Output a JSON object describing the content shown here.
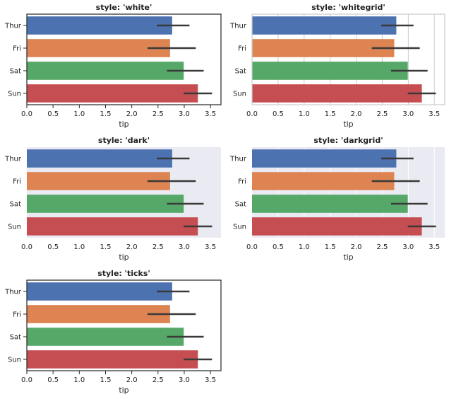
{
  "colors": {
    "bars": [
      "#4c72b0",
      "#dd8452",
      "#55a868",
      "#c44e52"
    ],
    "errorbar": "#3a3a3a",
    "dark_bg": "#eaeaf2",
    "grid_light": "#cccccc",
    "grid_dark": "#ffffff",
    "spine": "#262626"
  },
  "chart_data": [
    {
      "type": "bar",
      "orientation": "horizontal",
      "style": "white",
      "title": "style: 'white'",
      "categories": [
        "Thur",
        "Fri",
        "Sat",
        "Sun"
      ],
      "values": [
        2.77,
        2.73,
        2.99,
        3.26
      ],
      "ci_low": [
        2.48,
        2.3,
        2.67,
        2.99
      ],
      "ci_high": [
        3.1,
        3.22,
        3.37,
        3.53
      ],
      "xlabel": "tip",
      "ylabel": "",
      "xlim": [
        0,
        3.7
      ],
      "xticks": [
        "0.0",
        "0.5",
        "1.0",
        "1.5",
        "2.0",
        "2.5",
        "3.0",
        "3.5"
      ],
      "grid": false
    },
    {
      "type": "bar",
      "orientation": "horizontal",
      "style": "whitegrid",
      "title": "style: 'whitegrid'",
      "categories": [
        "Thur",
        "Fri",
        "Sat",
        "Sun"
      ],
      "values": [
        2.77,
        2.73,
        2.99,
        3.26
      ],
      "ci_low": [
        2.48,
        2.3,
        2.67,
        2.99
      ],
      "ci_high": [
        3.1,
        3.22,
        3.37,
        3.53
      ],
      "xlabel": "tip",
      "ylabel": "",
      "xlim": [
        0,
        3.7
      ],
      "xticks": [
        "0.0",
        "0.5",
        "1.0",
        "1.5",
        "2.0",
        "2.5",
        "3.0",
        "3.5"
      ],
      "grid": true
    },
    {
      "type": "bar",
      "orientation": "horizontal",
      "style": "dark",
      "title": "style: 'dark'",
      "categories": [
        "Thur",
        "Fri",
        "Sat",
        "Sun"
      ],
      "values": [
        2.77,
        2.73,
        2.99,
        3.26
      ],
      "ci_low": [
        2.48,
        2.3,
        2.67,
        2.99
      ],
      "ci_high": [
        3.1,
        3.22,
        3.37,
        3.53
      ],
      "xlabel": "tip",
      "ylabel": "",
      "xlim": [
        0,
        3.7
      ],
      "xticks": [
        "0.0",
        "0.5",
        "1.0",
        "1.5",
        "2.0",
        "2.5",
        "3.0",
        "3.5"
      ],
      "grid": false
    },
    {
      "type": "bar",
      "orientation": "horizontal",
      "style": "darkgrid",
      "title": "style: 'darkgrid'",
      "categories": [
        "Thur",
        "Fri",
        "Sat",
        "Sun"
      ],
      "values": [
        2.77,
        2.73,
        2.99,
        3.26
      ],
      "ci_low": [
        2.48,
        2.3,
        2.67,
        2.99
      ],
      "ci_high": [
        3.1,
        3.22,
        3.37,
        3.53
      ],
      "xlabel": "tip",
      "ylabel": "",
      "xlim": [
        0,
        3.7
      ],
      "xticks": [
        "0.0",
        "0.5",
        "1.0",
        "1.5",
        "2.0",
        "2.5",
        "3.0",
        "3.5"
      ],
      "grid": true
    },
    {
      "type": "bar",
      "orientation": "horizontal",
      "style": "ticks",
      "title": "style: 'ticks'",
      "categories": [
        "Thur",
        "Fri",
        "Sat",
        "Sun"
      ],
      "values": [
        2.77,
        2.73,
        2.99,
        3.26
      ],
      "ci_low": [
        2.48,
        2.3,
        2.67,
        2.99
      ],
      "ci_high": [
        3.1,
        3.22,
        3.37,
        3.53
      ],
      "xlabel": "tip",
      "ylabel": "",
      "xlim": [
        0,
        3.7
      ],
      "xticks": [
        "0.0",
        "0.5",
        "1.0",
        "1.5",
        "2.0",
        "2.5",
        "3.0",
        "3.5"
      ],
      "grid": false
    }
  ]
}
